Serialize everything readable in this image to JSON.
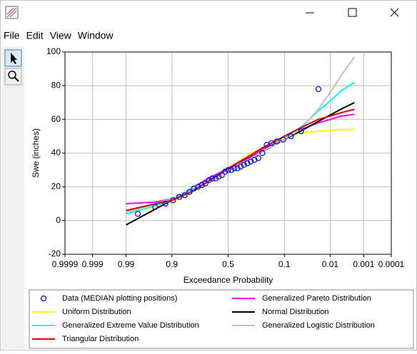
{
  "window": {
    "menu": [
      "File",
      "Edit",
      "View",
      "Window"
    ]
  },
  "chart_data": {
    "type": "line",
    "xscale": "normal-probability",
    "xlabel": "Exceedance Probability",
    "ylabel": "Swe (inches)",
    "xlim": [
      0.9999,
      0.0001
    ],
    "xticks": [
      0.9999,
      0.999,
      0.99,
      0.9,
      0.5,
      0.1,
      0.01,
      0.001,
      0.0001
    ],
    "ylim": [
      -20,
      100
    ],
    "yticks": [
      -20,
      0,
      20,
      40,
      60,
      80,
      100
    ],
    "grid": true,
    "x": [
      0.99,
      0.95,
      0.9,
      0.8,
      0.7,
      0.5,
      0.3,
      0.2,
      0.1,
      0.05,
      0.02,
      0.01,
      0.005,
      0.002
    ],
    "series": [
      {
        "name": "Data (MEDIAN plotting positions)",
        "color": "#0000ff",
        "marker": "circle",
        "x": [
          0.0198,
          0.048,
          0.0763,
          0.1045,
          0.1328,
          0.161,
          0.1893,
          0.2175,
          0.2458,
          0.274,
          0.3023,
          0.3305,
          0.3588,
          0.387,
          0.4153,
          0.4435,
          0.4718,
          0.5,
          0.5282,
          0.5565,
          0.5847,
          0.613,
          0.6412,
          0.6695,
          0.6977,
          0.726,
          0.7542,
          0.7825,
          0.8107,
          0.839,
          0.8672,
          0.8955,
          0.9237,
          0.952,
          0.9802
        ],
        "values": [
          78,
          53,
          50,
          48,
          47,
          46,
          45,
          40,
          37,
          36,
          35,
          34,
          33,
          32,
          31,
          31,
          30,
          30,
          29,
          27,
          26,
          25,
          25,
          24,
          22,
          21,
          20,
          19,
          17,
          15,
          14,
          12,
          10,
          8,
          4
        ]
      },
      {
        "name": "Generalized Pareto Distribution",
        "color": "#ff00ff",
        "values": [
          10,
          11,
          13,
          19,
          24,
          31,
          38,
          43,
          49,
          54,
          58,
          60,
          62,
          63
        ]
      },
      {
        "name": "Uniform Distribution",
        "color": "#ffff00",
        "values": [
          5,
          8,
          11,
          16,
          22,
          31,
          40,
          44,
          49,
          52,
          53,
          53.5,
          54,
          54
        ]
      },
      {
        "name": "Normal Distribution",
        "color": "#000000",
        "values": [
          -2.6,
          7,
          12.1,
          18.2,
          22.7,
          30,
          37.3,
          41.8,
          47.9,
          53,
          58.8,
          62.6,
          66.1,
          70
        ]
      },
      {
        "name": "Generalized Extreme Value Distribution",
        "color": "#00ffff",
        "values": [
          4,
          9,
          12,
          18,
          23,
          30,
          37,
          42,
          48,
          55,
          65,
          71,
          77,
          82
        ]
      },
      {
        "name": "Generalized Logistic Distribution",
        "color": "#c0c0c0",
        "values": [
          5,
          10,
          13,
          19,
          23,
          30,
          37,
          42,
          48,
          54,
          66,
          76,
          86,
          97
        ]
      },
      {
        "name": "Triangular Distribution",
        "color": "#e00000",
        "values": [
          6,
          10,
          12,
          17,
          22,
          31,
          39,
          44,
          50,
          55,
          60,
          62,
          64,
          66
        ]
      }
    ]
  }
}
